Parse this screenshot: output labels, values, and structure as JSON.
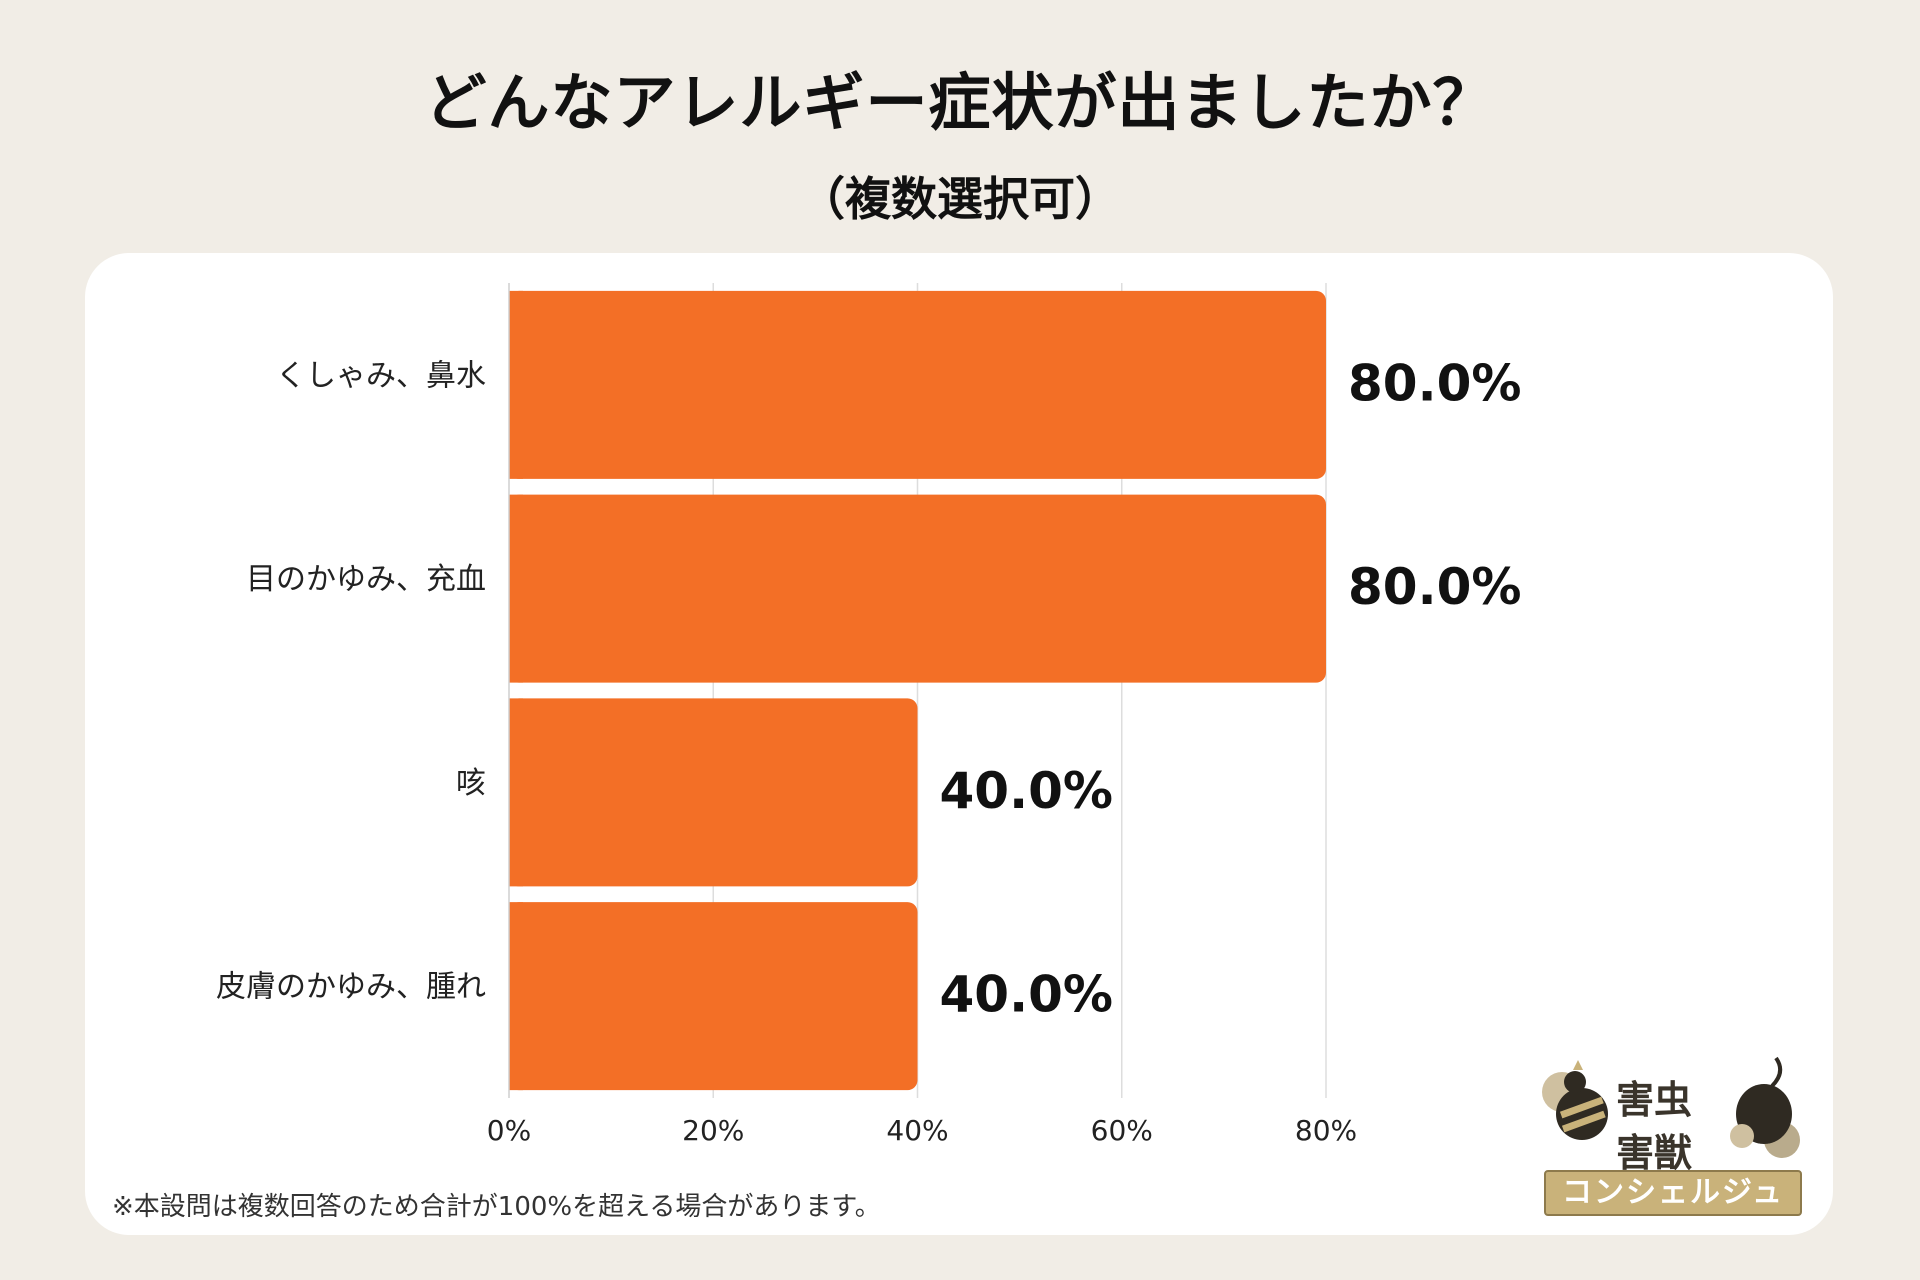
{
  "title": "どんなアレルギー症状が出ましたか？",
  "subtitle": "（複数選択可）",
  "note": "※本設問は複数回答のため合計が100%を超える場合があります。",
  "logo": {
    "line1": "害虫",
    "line2": "害獣",
    "band": "コンシェルジュ"
  },
  "colors": {
    "bar": "#f36f26",
    "background": "#f1ede6",
    "card": "#ffffff",
    "grid": "#dddddd"
  },
  "chart_data": {
    "type": "bar",
    "orientation": "horizontal",
    "categories": [
      "くしゃみ、鼻水",
      "目のかゆみ、充血",
      "咳",
      "皮膚のかゆみ、腫れ"
    ],
    "values": [
      80.0,
      80.0,
      40.0,
      40.0
    ],
    "value_labels": [
      "80.0%",
      "80.0%",
      "40.0%",
      "40.0%"
    ],
    "x_ticks": [
      "0%",
      "20%",
      "40%",
      "60%",
      "80%"
    ],
    "xlim": [
      0,
      80
    ],
    "grid": true
  }
}
